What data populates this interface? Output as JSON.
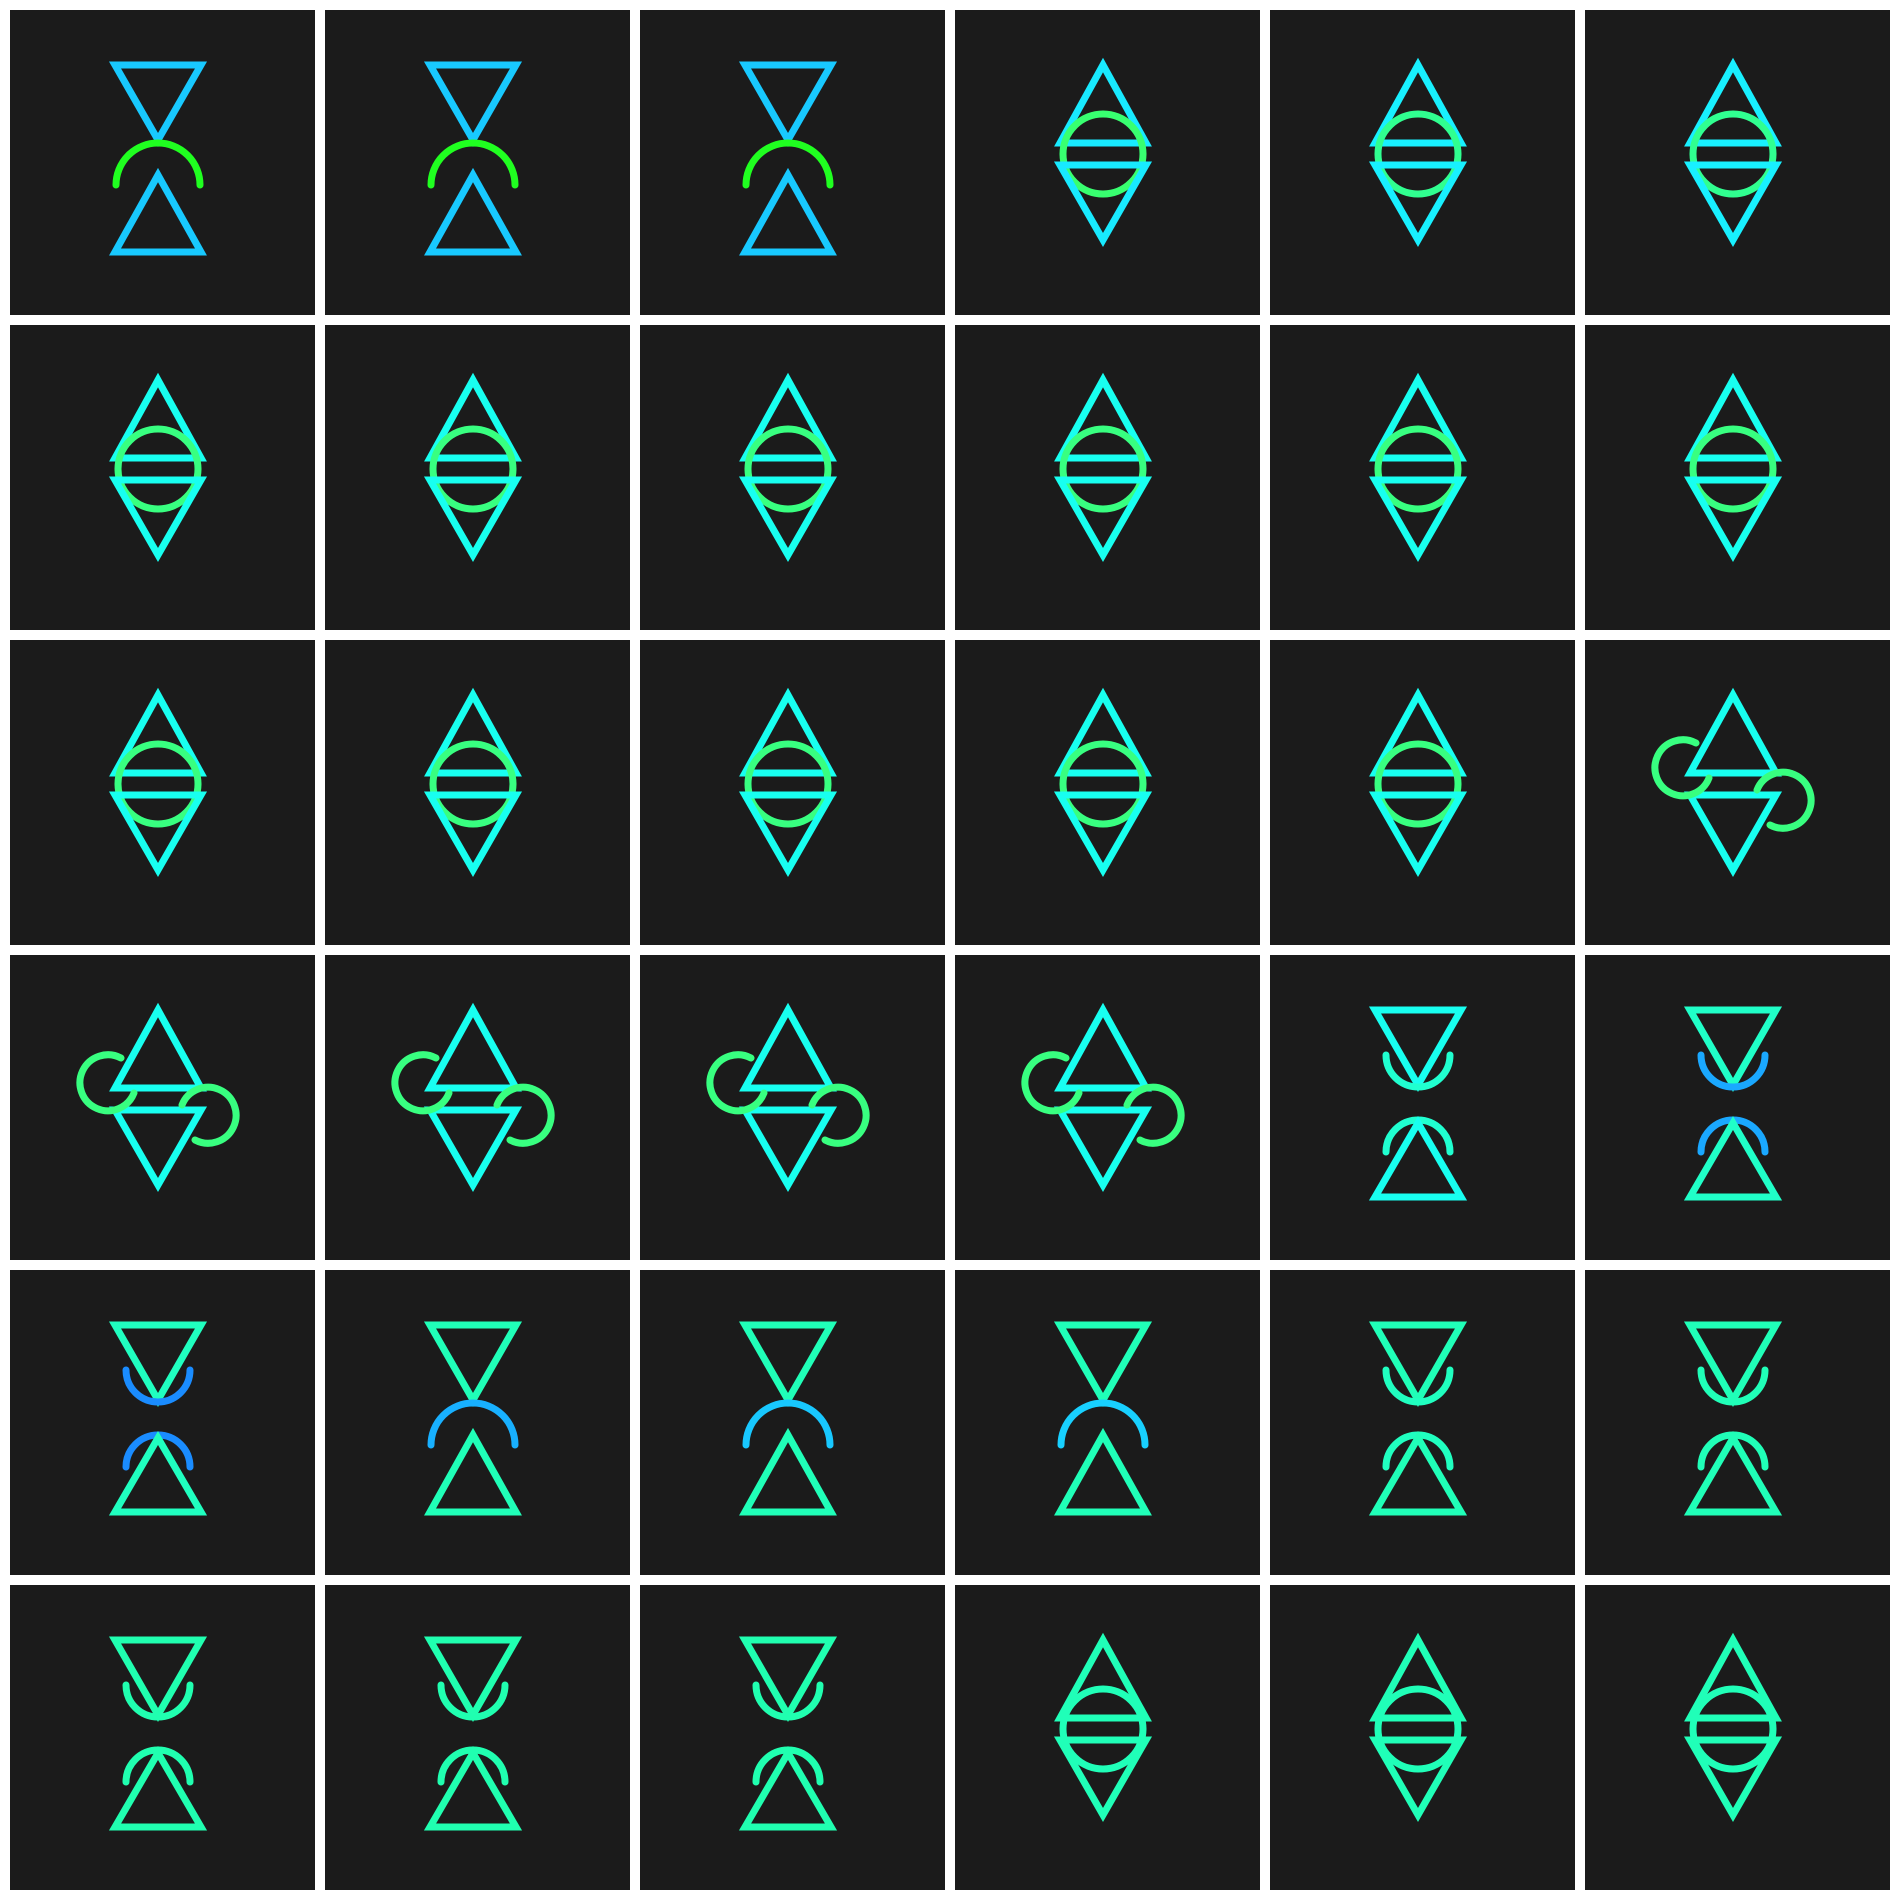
{
  "grid": {
    "rows": 6,
    "cols": 6,
    "background": "#ffffff",
    "tile_color": "#1b1b1b"
  },
  "tiles": [
    {
      "layout": "apart",
      "tri": "#18c9ff",
      "arc": "#20ff20",
      "arc_dir": "up"
    },
    {
      "layout": "apart",
      "tri": "#18c9ff",
      "arc": "#20ff20",
      "arc_dir": "up"
    },
    {
      "layout": "apart",
      "tri": "#18c9ff",
      "arc": "#20ff20",
      "arc_dir": "up"
    },
    {
      "layout": "joined-top",
      "tri": "#18eaff",
      "arc": "#38ff70"
    },
    {
      "layout": "joined-top",
      "tri": "#18f0ff",
      "arc": "#30ff90"
    },
    {
      "layout": "joined-top",
      "tri": "#18f0ff",
      "arc": "#30ff90"
    },
    {
      "layout": "joined-mid",
      "tri": "#18fff0",
      "arc": "#38ff80"
    },
    {
      "layout": "joined-mid",
      "tri": "#18fff0",
      "arc": "#38ff80"
    },
    {
      "layout": "joined-mid",
      "tri": "#18fff0",
      "arc": "#38ff80"
    },
    {
      "layout": "joined-mid",
      "tri": "#18fff0",
      "arc": "#38ff80"
    },
    {
      "layout": "joined-mid",
      "tri": "#18fff0",
      "arc": "#38ff80"
    },
    {
      "layout": "joined-mid",
      "tri": "#18fff0",
      "arc": "#38ff80"
    },
    {
      "layout": "joined-low",
      "tri": "#18fff0",
      "arc": "#38ff80"
    },
    {
      "layout": "joined-low",
      "tri": "#18fff0",
      "arc": "#38ff80"
    },
    {
      "layout": "joined-low",
      "tri": "#18fff0",
      "arc": "#38ff80"
    },
    {
      "layout": "joined-low",
      "tri": "#18fff0",
      "arc": "#38ff80"
    },
    {
      "layout": "joined-low",
      "tri": "#18fff0",
      "arc": "#38ff80"
    },
    {
      "layout": "hooks",
      "tri": "#18fff0",
      "arc": "#38ff80"
    },
    {
      "layout": "hooks",
      "tri": "#18fff0",
      "arc": "#38ff80"
    },
    {
      "layout": "hooks",
      "tri": "#18fff0",
      "arc": "#38ff80"
    },
    {
      "layout": "hooks",
      "tri": "#18fff0",
      "arc": "#38ff80"
    },
    {
      "layout": "hooks",
      "tri": "#18fff0",
      "arc": "#38ff80"
    },
    {
      "layout": "split",
      "tri": "#18fff0",
      "arc": "#20ffd0",
      "arc_dir": "down"
    },
    {
      "layout": "split",
      "tri": "#20ffc8",
      "arc": "#1aa8ff",
      "arc_dir": "down"
    },
    {
      "layout": "split",
      "tri": "#20ffc0",
      "arc": "#1a8cff",
      "arc_dir": "down"
    },
    {
      "layout": "apart",
      "tri": "#20ffb8",
      "arc": "#18b0ff",
      "arc_dir": "up"
    },
    {
      "layout": "apart",
      "tri": "#20ffb8",
      "arc": "#18c8ff",
      "arc_dir": "up"
    },
    {
      "layout": "apart",
      "tri": "#20ffb8",
      "arc": "#18d0ff",
      "arc_dir": "up"
    },
    {
      "layout": "split",
      "tri": "#20ffb8",
      "arc": "#20ffc0",
      "arc_dir": "down"
    },
    {
      "layout": "split",
      "tri": "#20ffb8",
      "arc": "#20ffb8",
      "arc_dir": "down"
    },
    {
      "layout": "split",
      "tri": "#20ffb0",
      "arc": "#20ffb0",
      "arc_dir": "down"
    },
    {
      "layout": "split",
      "tri": "#20ffb0",
      "arc": "#20ffb0",
      "arc_dir": "down"
    },
    {
      "layout": "split",
      "tri": "#20ffb0",
      "arc": "#20ffb0",
      "arc_dir": "down"
    },
    {
      "layout": "joined-top",
      "tri": "#20ffb8",
      "arc": "#20ffb8"
    },
    {
      "layout": "joined-top",
      "tri": "#20ffb8",
      "arc": "#20ffb8"
    },
    {
      "layout": "joined-top",
      "tri": "#20ffb8",
      "arc": "#20ffb8"
    }
  ]
}
